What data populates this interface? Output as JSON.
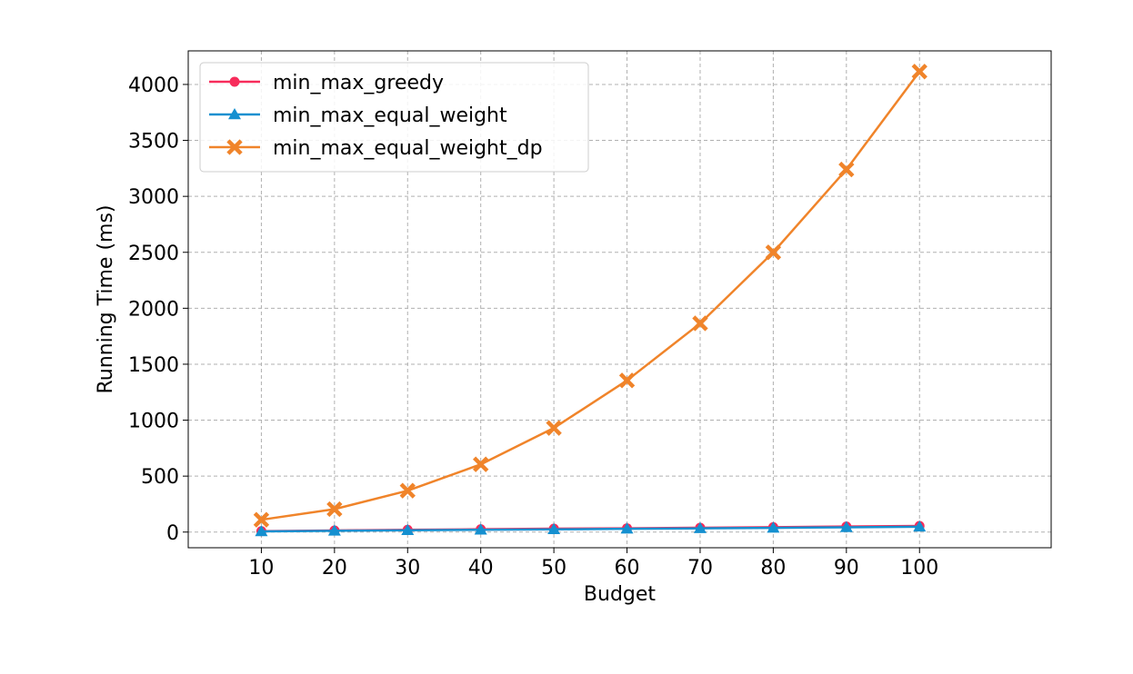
{
  "chart_data": {
    "type": "line",
    "title": "",
    "xlabel": "Budget",
    "ylabel": "Running Time (ms)",
    "x": [
      10,
      20,
      30,
      40,
      50,
      60,
      70,
      80,
      90,
      100
    ],
    "xlim": [
      0,
      118
    ],
    "ylim": [
      -140,
      4300
    ],
    "xticks": [
      10,
      20,
      30,
      40,
      50,
      60,
      70,
      80,
      90,
      100
    ],
    "yticks": [
      0,
      500,
      1000,
      1500,
      2000,
      2500,
      3000,
      3500,
      4000
    ],
    "grid": true,
    "legend_position": "top-left",
    "series": [
      {
        "name": "min_max_greedy",
        "color": "#f72c5b",
        "marker": "circle",
        "values": [
          8,
          14,
          20,
          25,
          30,
          34,
          39,
          44,
          50,
          55
        ]
      },
      {
        "name": "min_max_equal_weight",
        "color": "#1590d0",
        "marker": "triangle",
        "values": [
          6,
          11,
          16,
          20,
          24,
          29,
          33,
          38,
          43,
          48
        ]
      },
      {
        "name": "min_max_equal_weight_dp",
        "color": "#f0842a",
        "marker": "x",
        "values": [
          110,
          205,
          370,
          605,
          930,
          1355,
          1865,
          2500,
          3240,
          4115
        ]
      }
    ]
  }
}
